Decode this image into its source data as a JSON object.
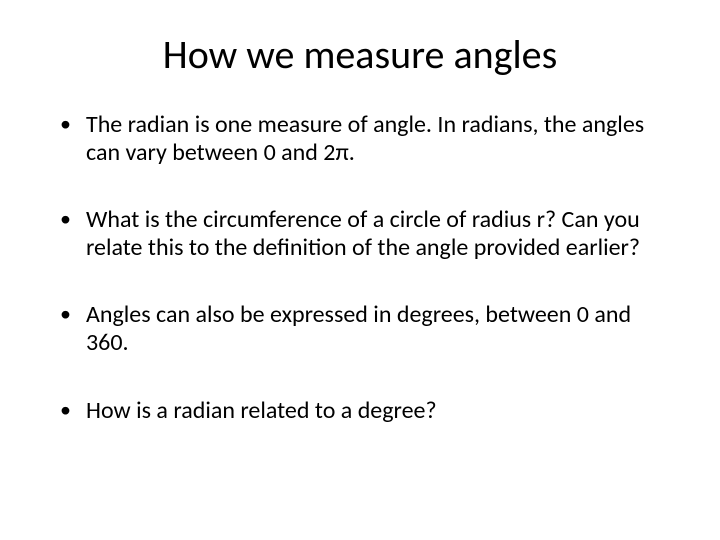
{
  "slide": {
    "title": "How we measure angles",
    "title_fontsize": 40,
    "body_fontsize": 24,
    "text_color": "#000000",
    "background_color": "#ffffff",
    "bullets": [
      "The radian is one measure of angle. In radians, the angles can vary between 0 and 2π.",
      "What is the circumference of a circle of radius r? Can you relate this to the definition of the angle provided earlier?",
      "Angles can also be expressed in degrees, between 0 and 360.",
      "How is a radian related to a degree?"
    ]
  }
}
